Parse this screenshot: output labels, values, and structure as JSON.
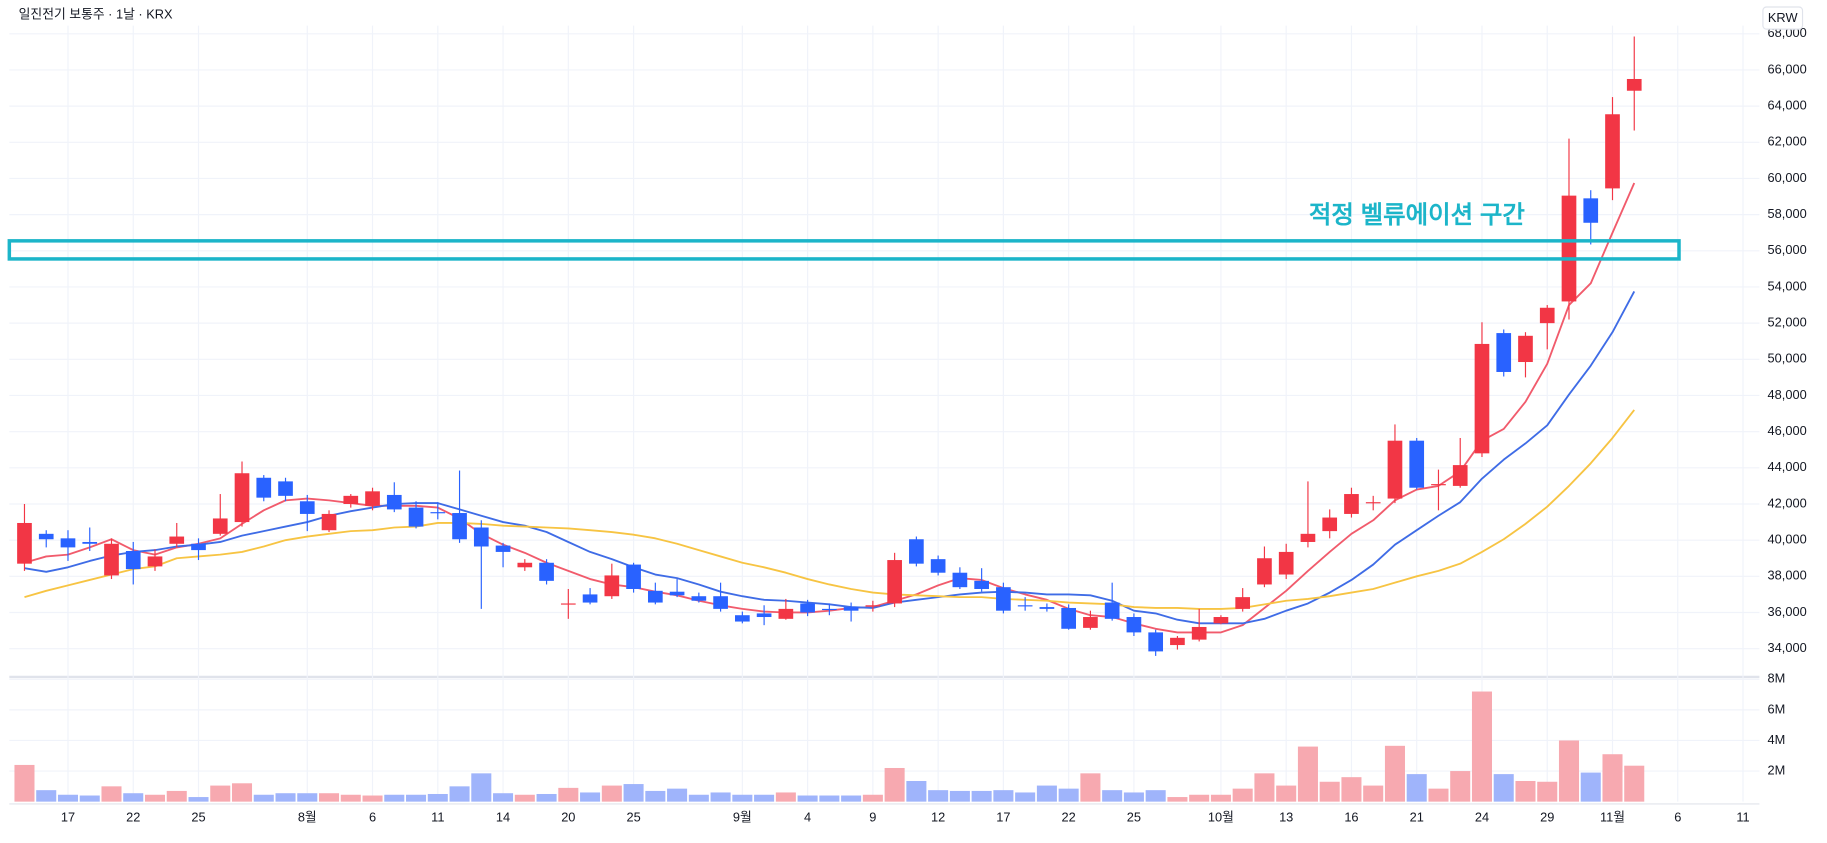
{
  "chart_data": {
    "type": "candlestick",
    "title": "일진전기 보통주 · 1날 · KRX",
    "currency": "KRW",
    "annotation": "적정 벨류에이션 구간",
    "band": [
      55550,
      56550
    ],
    "band_color": "#1cb5c9",
    "up_color": "#f23645",
    "down_color": "#2962ff",
    "volume_up_color": "#f7a9b0",
    "volume_down_color": "#9fb4fb",
    "grid": true,
    "categories": [
      null,
      null,
      "17",
      null,
      null,
      "22",
      null,
      null,
      "25",
      null,
      null,
      null,
      null,
      "8월",
      null,
      null,
      "6",
      null,
      null,
      "11",
      null,
      null,
      "14",
      null,
      null,
      "20",
      null,
      null,
      "25",
      null,
      null,
      null,
      null,
      "9월",
      null,
      null,
      "4",
      null,
      null,
      "9",
      null,
      null,
      "12",
      null,
      null,
      "17",
      null,
      null,
      "22",
      null,
      null,
      "25",
      null,
      null,
      null,
      "10월",
      null,
      null,
      "13",
      null,
      null,
      "16",
      null,
      null,
      "21",
      null,
      null,
      "24",
      null,
      null,
      "29",
      null,
      null,
      "11월",
      null,
      null,
      "6",
      null,
      null,
      "11"
    ],
    "open": [
      38700,
      40350,
      40100,
      39900,
      38050,
      39400,
      38550,
      39800,
      39800,
      40350,
      41000,
      43450,
      43250,
      42150,
      40550,
      42000,
      41900,
      42500,
      41800,
      41550,
      41500,
      40700,
      39700,
      38500,
      38750,
      36450,
      37000,
      36900,
      38650,
      37200,
      37150,
      36900,
      36900,
      35850,
      35950,
      35650,
      36500,
      36200,
      36300,
      36350,
      36500,
      40050,
      38950,
      38200,
      37750,
      37400,
      36400,
      36300,
      36250,
      35150,
      36550,
      35750,
      34900,
      34200,
      34500,
      35400,
      36200,
      37550,
      38100,
      39900,
      40500,
      41450,
      42050,
      42300,
      45500,
      43050,
      43000,
      44800,
      51450,
      49850,
      52000,
      53200,
      58900,
      59450,
      64850,
      null,
      null,
      null,
      null,
      null
    ],
    "high": [
      42000,
      40550,
      40550,
      40700,
      40100,
      39900,
      39500,
      40950,
      40100,
      42550,
      44350,
      43600,
      43450,
      42500,
      41650,
      42550,
      42900,
      43200,
      42150,
      42100,
      43850,
      41100,
      39850,
      38950,
      38950,
      37300,
      37350,
      38700,
      38750,
      37650,
      37850,
      37100,
      37650,
      36050,
      36400,
      36750,
      36700,
      36500,
      36550,
      36650,
      39300,
      40200,
      39150,
      38500,
      38450,
      37650,
      36850,
      36500,
      36450,
      36100,
      37650,
      35950,
      35050,
      34700,
      36200,
      35850,
      37350,
      39650,
      39800,
      43250,
      41700,
      42900,
      42450,
      46400,
      45650,
      43900,
      45650,
      52050,
      51650,
      51500,
      53000,
      62200,
      59350,
      64500,
      67850,
      null,
      null,
      null,
      null,
      null
    ],
    "low": [
      38300,
      39600,
      38850,
      39400,
      37850,
      37550,
      38300,
      39600,
      38900,
      40250,
      40750,
      42150,
      42150,
      40500,
      40450,
      41800,
      41650,
      41550,
      40650,
      41150,
      39850,
      36200,
      38500,
      38300,
      37550,
      35650,
      36450,
      36750,
      37100,
      36450,
      36850,
      36550,
      36050,
      35400,
      35300,
      35600,
      35800,
      35850,
      35500,
      36050,
      36300,
      38550,
      38050,
      37300,
      37150,
      35950,
      36100,
      36050,
      35050,
      35050,
      35550,
      34700,
      33600,
      33950,
      34400,
      35350,
      36050,
      37400,
      37850,
      39600,
      40100,
      41250,
      41650,
      42050,
      42800,
      41650,
      42900,
      44600,
      49050,
      49000,
      50550,
      52200,
      56350,
      58800,
      62650,
      null,
      null,
      null,
      null,
      null
    ],
    "close": [
      40950,
      40050,
      39600,
      39800,
      39800,
      38400,
      39100,
      40200,
      39450,
      41200,
      43700,
      42350,
      42450,
      41450,
      41450,
      42450,
      42700,
      41700,
      40750,
      41500,
      40050,
      39650,
      39350,
      38750,
      37750,
      36500,
      36550,
      38050,
      37300,
      36550,
      36950,
      36650,
      36200,
      35500,
      35750,
      36200,
      36000,
      36150,
      36100,
      36400,
      38900,
      38700,
      38200,
      37400,
      37300,
      36100,
      36350,
      36200,
      35100,
      35750,
      35650,
      34900,
      33850,
      34600,
      35200,
      35750,
      36850,
      39000,
      39350,
      40350,
      41250,
      42550,
      42100,
      45500,
      42900,
      43100,
      44150,
      50850,
      49300,
      51300,
      52850,
      59050,
      57550,
      63550,
      65500,
      null,
      null,
      null,
      null,
      null
    ],
    "volume": [
      2400000,
      750000,
      450000,
      400000,
      1000000,
      550000,
      450000,
      700000,
      300000,
      1050000,
      1200000,
      450000,
      550000,
      550000,
      550000,
      450000,
      400000,
      450000,
      450000,
      500000,
      1000000,
      1850000,
      550000,
      450000,
      500000,
      900000,
      600000,
      1050000,
      1150000,
      700000,
      850000,
      450000,
      600000,
      450000,
      450000,
      600000,
      400000,
      400000,
      400000,
      450000,
      2200000,
      1350000,
      750000,
      700000,
      700000,
      750000,
      600000,
      1050000,
      850000,
      1850000,
      750000,
      600000,
      750000,
      300000,
      450000,
      450000,
      850000,
      1850000,
      1050000,
      3600000,
      1300000,
      1600000,
      1050000,
      3650000,
      1800000,
      850000,
      2000000,
      7200000,
      1800000,
      1350000,
      1300000,
      4000000,
      1900000,
      3100000,
      2350000,
      null,
      null,
      null,
      null,
      null
    ],
    "lines": [
      {
        "color": "#f15b6c",
        "values": [
          38750,
          39100,
          39200,
          39600,
          40050,
          39450,
          39200,
          39600,
          39800,
          40100,
          40900,
          41650,
          42200,
          42300,
          42200,
          42050,
          41900,
          41900,
          41900,
          41800,
          41200,
          40350,
          39750,
          39300,
          38750,
          38300,
          37850,
          37550,
          37400,
          37150,
          36950,
          36650,
          36400,
          36200,
          36050,
          36000,
          36000,
          36100,
          36250,
          36300,
          36650,
          37000,
          37500,
          37900,
          37800,
          37350,
          37000,
          36700,
          36200,
          35850,
          35750,
          35400,
          35100,
          34900,
          34900,
          34900,
          35300,
          36250,
          37200,
          38300,
          39350,
          40350,
          41100,
          42200,
          42800,
          43000,
          43800,
          45500,
          46150,
          47650,
          49750,
          53000,
          54200,
          57000,
          59750,
          null,
          null,
          null,
          null,
          null
        ]
      },
      {
        "color": "#3f6ce6",
        "values": [
          38450,
          38250,
          38500,
          38850,
          39150,
          39350,
          39450,
          39650,
          39750,
          39900,
          40250,
          40500,
          40750,
          41000,
          41350,
          41600,
          41800,
          42000,
          42050,
          42050,
          41700,
          41350,
          41000,
          40800,
          40450,
          39900,
          39350,
          38950,
          38500,
          38100,
          37900,
          37550,
          37150,
          36900,
          36700,
          36650,
          36550,
          36450,
          36300,
          36250,
          36550,
          36700,
          36850,
          37000,
          37100,
          37150,
          37100,
          37000,
          37000,
          36950,
          36650,
          36100,
          35950,
          35600,
          35400,
          35400,
          35400,
          35650,
          36100,
          36500,
          37100,
          37800,
          38650,
          39750,
          40550,
          41350,
          42100,
          43400,
          44450,
          45350,
          46350,
          48050,
          49650,
          51500,
          53750,
          null,
          null,
          null,
          null,
          null
        ]
      },
      {
        "color": "#f7c443",
        "values": [
          36850,
          37200,
          37500,
          37800,
          38100,
          38400,
          38550,
          39000,
          39100,
          39200,
          39350,
          39650,
          40000,
          40200,
          40350,
          40500,
          40550,
          40700,
          40750,
          40950,
          40950,
          40900,
          40800,
          40750,
          40700,
          40650,
          40550,
          40450,
          40300,
          40100,
          39800,
          39450,
          39100,
          38750,
          38500,
          38200,
          37850,
          37550,
          37300,
          37100,
          37000,
          36950,
          36900,
          36850,
          36850,
          36750,
          36700,
          36650,
          36550,
          36500,
          36450,
          36300,
          36250,
          36250,
          36200,
          36200,
          36250,
          36450,
          36650,
          36750,
          36900,
          37100,
          37300,
          37650,
          38000,
          38300,
          38700,
          39350,
          40050,
          40900,
          41850,
          43000,
          44250,
          45650,
          47200,
          null,
          null,
          null,
          null,
          null
        ]
      }
    ],
    "ylim": [
      32500,
      68450
    ],
    "yticks": [
      {
        "value": 34000,
        "label": "34,000"
      },
      {
        "value": 36000,
        "label": "36,000"
      },
      {
        "value": 38000,
        "label": "38,000"
      },
      {
        "value": 40000,
        "label": "40,000"
      },
      {
        "value": 42000,
        "label": "42,000"
      },
      {
        "value": 44000,
        "label": "44,000"
      },
      {
        "value": 46000,
        "label": "46,000"
      },
      {
        "value": 48000,
        "label": "48,000"
      },
      {
        "value": 50000,
        "label": "50,000"
      },
      {
        "value": 52000,
        "label": "52,000"
      },
      {
        "value": 54000,
        "label": "54,000"
      },
      {
        "value": 56000,
        "label": "56,000"
      },
      {
        "value": 58000,
        "label": "58,000"
      },
      {
        "value": 60000,
        "label": "60,000"
      },
      {
        "value": 62000,
        "label": "62,000"
      },
      {
        "value": 64000,
        "label": "64,000"
      },
      {
        "value": 66000,
        "label": "66,000"
      },
      {
        "value": 68000,
        "label": "68,000"
      }
    ],
    "volume_ylim": [
      0,
      8000000
    ],
    "volume_yticks": [
      {
        "value": 2000000,
        "label": "2M"
      },
      {
        "value": 4000000,
        "label": "4M"
      },
      {
        "value": 6000000,
        "label": "6M"
      },
      {
        "value": 8000000,
        "label": "8M"
      }
    ]
  }
}
